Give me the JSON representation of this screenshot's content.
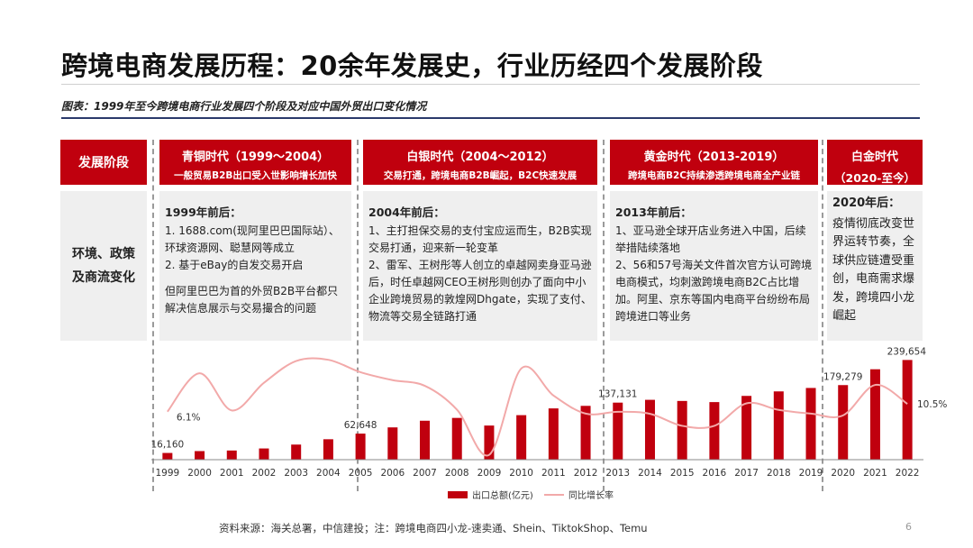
{
  "title": "跨境电商发展历程：20余年发展史，行业历经四个发展阶段",
  "subtitle": "图表：1999年至今跨境电商行业发展四个阶段及对应中国外贸出口变化情况",
  "side_header": "发展阶段",
  "side_label_lines": [
    "环境、政策",
    "及商流变化"
  ],
  "stages": [
    {
      "name": "青铜时代（1999～2004）",
      "desc": "一般贸易B2B出口受入世影响增长加快",
      "heading": "1999年前后：",
      "lines": [
        "1. 1688.com(现阿里巴巴国际站）、环球资源网、聪慧网等成立",
        "2. 基于eBay的自发交易开启",
        "",
        "但阿里巴巴为首的外贸B2B平台都只解决信息展示与交易撮合的问题"
      ]
    },
    {
      "name": "白银时代（2004～2012）",
      "desc": "交易打通，跨境电商B2B崛起，B2C快速发展",
      "heading": "2004年前后：",
      "lines": [
        "1、主打担保交易的支付宝应运而生，B2B实现交易打通，迎来新一轮变革",
        "2、雷军、王树彤等人创立的卓越网卖身亚马逊后，时任卓越网CEO王树彤则创办了面向中小企业跨境贸易的敦煌网Dhgate，实现了支付、物流等交易全链路打通"
      ]
    },
    {
      "name": "黄金时代（2013-2019）",
      "desc": "跨境电商B2C持续渗透跨境电商全产业链",
      "heading": "2013年前后：",
      "lines": [
        "1、亚马逊全球开店业务进入中国，后续举措陆续落地",
        "2、56和57号海关文件首次官方认可跨境电商模式，均刺激跨境电商B2C占比增加。阿里、京东等国内电商平台纷纷布局跨境进口等业务"
      ]
    },
    {
      "name": "白金时代",
      "desc": "（2020-至今）",
      "heading": "2020年后：",
      "lines": [
        "疫情彻底改变世界运转节奏，全球供应链遭受重创，电商需求爆发，跨境四小龙崛起"
      ]
    }
  ],
  "chart_data": {
    "type": "bar",
    "categories": [
      "1999",
      "2000",
      "2001",
      "2002",
      "2003",
      "2004",
      "2005",
      "2006",
      "2007",
      "2008",
      "2009",
      "2010",
      "2011",
      "2012",
      "2013",
      "2014",
      "2015",
      "2016",
      "2017",
      "2018",
      "2019",
      "2020",
      "2021",
      "2022"
    ],
    "series": [
      {
        "name": "出口总额(亿元)",
        "color": "#c0000e",
        "values": [
          16160,
          20634,
          22024,
          26948,
          36288,
          49103,
          62648,
          77598,
          93627,
          100395,
          82030,
          107023,
          123241,
          129359,
          137131,
          143884,
          141167,
          138419,
          153309,
          164128,
          172374,
          179279,
          217348,
          239654
        ]
      },
      {
        "name": "同比增长率",
        "color": "#f2a9a9",
        "values": [
          6.1,
          27.8,
          6.8,
          22.4,
          34.7,
          35.4,
          28.4,
          23.9,
          20.7,
          7.2,
          -18.3,
          30.5,
          15.2,
          5.0,
          6.0,
          4.9,
          -1.9,
          -1.9,
          10.8,
          7.1,
          5.0,
          4.0,
          21.2,
          10.5
        ]
      }
    ],
    "bar_labels": [
      {
        "index": 0,
        "text": "16,160"
      },
      {
        "index": 6,
        "text": "62,648"
      },
      {
        "index": 14,
        "text": "137,131"
      },
      {
        "index": 21,
        "text": "179,279"
      },
      {
        "index": 23,
        "text": "239,654"
      }
    ],
    "line_labels": [
      {
        "index": 0,
        "text": "6.1%"
      },
      {
        "index": 23,
        "text": "10.5%"
      }
    ],
    "legend": [
      {
        "label": "出口总额(亿元)",
        "kind": "bar"
      },
      {
        "label": "同比增长率",
        "kind": "line"
      }
    ],
    "legend_position": "bottom",
    "grid": false
  },
  "source_text": "资料来源：海关总署，中信建投；注：跨境电商四小龙-速卖通、Shein、TiktokShop、Temu",
  "page_number": "6"
}
